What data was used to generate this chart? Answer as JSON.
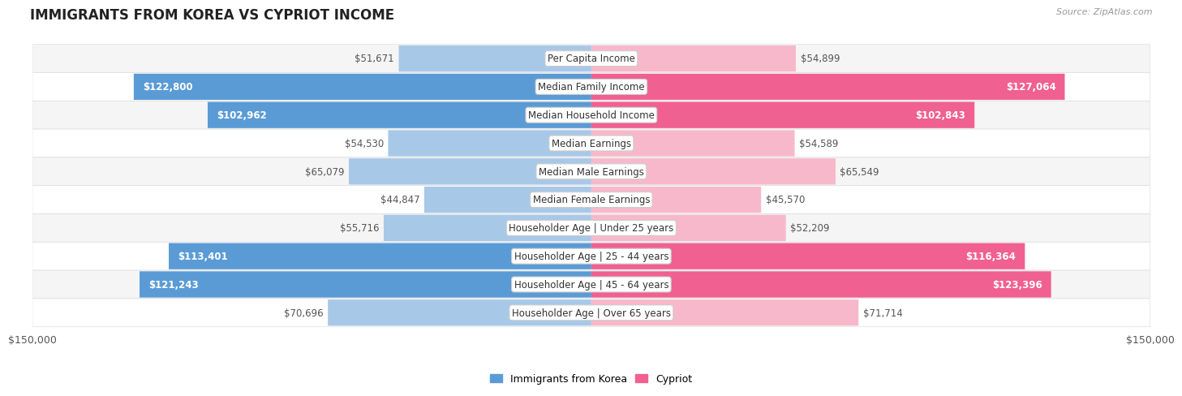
{
  "title": "IMMIGRANTS FROM KOREA VS CYPRIOT INCOME",
  "source": "Source: ZipAtlas.com",
  "categories": [
    "Per Capita Income",
    "Median Family Income",
    "Median Household Income",
    "Median Earnings",
    "Median Male Earnings",
    "Median Female Earnings",
    "Householder Age | Under 25 years",
    "Householder Age | 25 - 44 years",
    "Householder Age | 45 - 64 years",
    "Householder Age | Over 65 years"
  ],
  "korea_values": [
    51671,
    122800,
    102962,
    54530,
    65079,
    44847,
    55716,
    113401,
    121243,
    70696
  ],
  "cypriot_values": [
    54899,
    127064,
    102843,
    54589,
    65549,
    45570,
    52209,
    116364,
    123396,
    71714
  ],
  "korea_labels": [
    "$51,671",
    "$122,800",
    "$102,962",
    "$54,530",
    "$65,079",
    "$44,847",
    "$55,716",
    "$113,401",
    "$121,243",
    "$70,696"
  ],
  "cypriot_labels": [
    "$54,899",
    "$127,064",
    "$102,843",
    "$54,589",
    "$65,549",
    "$45,570",
    "$52,209",
    "$116,364",
    "$123,396",
    "$71,714"
  ],
  "korea_color_large": "#5b9bd5",
  "korea_color_small": "#a8c8e8",
  "cypriot_color_large": "#f06090",
  "cypriot_color_small": "#f8b8cc",
  "max_value": 150000,
  "xlabel_left": "$150,000",
  "xlabel_right": "$150,000",
  "legend_korea": "Immigrants from Korea",
  "legend_cypriot": "Cypriot",
  "background_color": "#ffffff",
  "row_bg_light": "#f5f5f5",
  "row_bg_white": "#ffffff",
  "bar_height": 0.58,
  "label_fontsize": 8.5,
  "title_fontsize": 12,
  "category_fontsize": 8.5,
  "large_threshold": 80000,
  "label_inside_color": "#ffffff",
  "label_outside_color": "#555555"
}
